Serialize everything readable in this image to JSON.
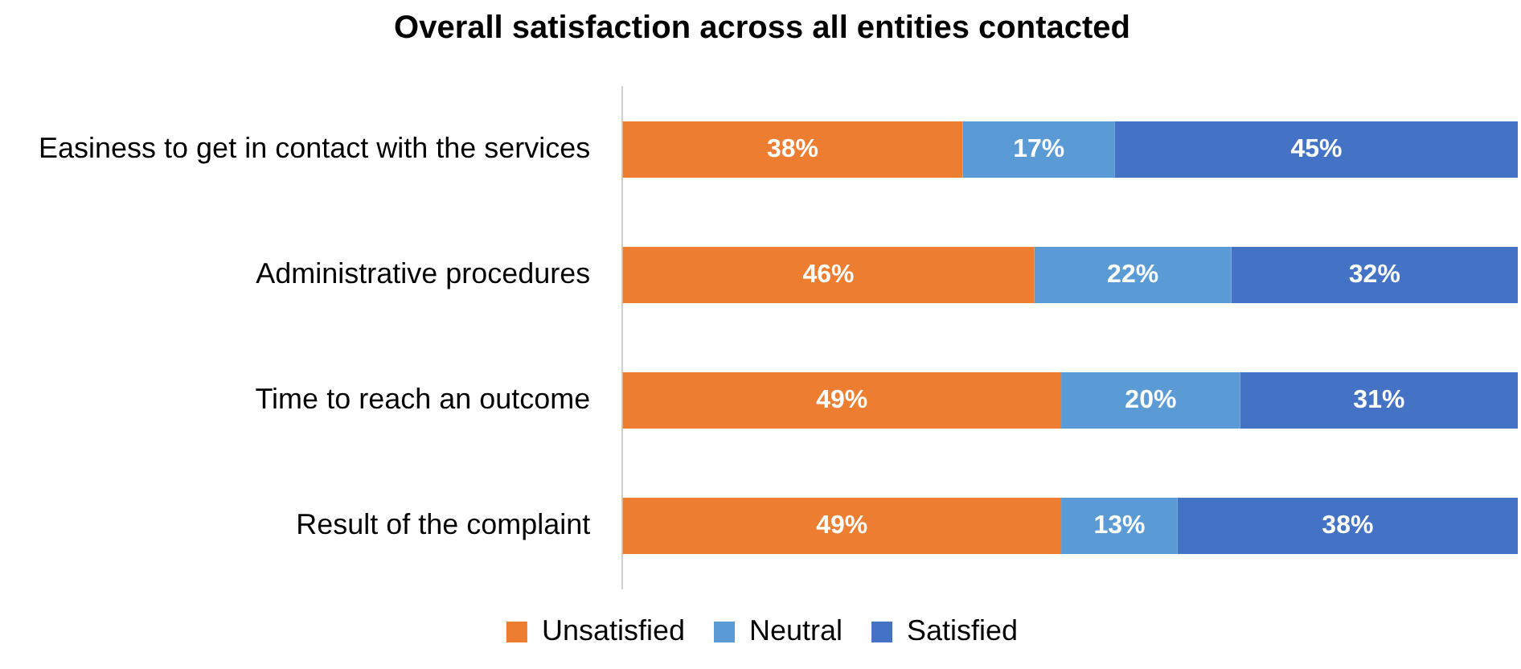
{
  "chart_data": {
    "type": "bar",
    "orientation": "horizontal",
    "stacked": true,
    "title": "Overall satisfaction across all entities contacted",
    "categories": [
      "Easiness to get in contact with the services",
      "Administrative procedures",
      "Time to reach an outcome",
      "Result of the complaint"
    ],
    "series": [
      {
        "name": "Unsatisfied",
        "color": "#ed7d31",
        "values": [
          38,
          46,
          49,
          49
        ],
        "value_labels": [
          "38%",
          "46%",
          "49%",
          "49%"
        ]
      },
      {
        "name": "Neutral",
        "color": "#5b9bd5",
        "values": [
          17,
          22,
          20,
          13
        ],
        "value_labels": [
          "17%",
          "22%",
          "20%",
          "13%"
        ]
      },
      {
        "name": "Satisfied",
        "color": "#4472c4",
        "values": [
          45,
          32,
          31,
          38
        ],
        "value_labels": [
          "45%",
          "32%",
          "31%",
          "38%"
        ]
      }
    ],
    "xlim": [
      0,
      100
    ],
    "tick_labels": "y",
    "legend": "bottom"
  }
}
